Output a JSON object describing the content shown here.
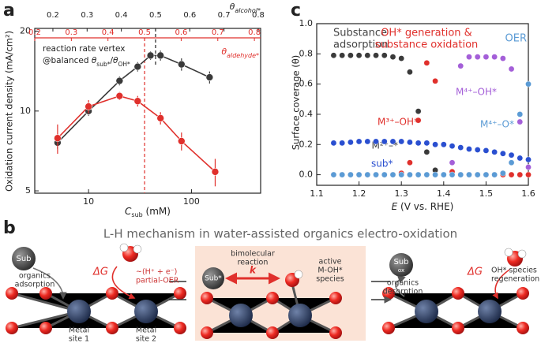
{
  "panels": [
    "a",
    "b",
    "c"
  ],
  "chart_data": [
    {
      "type": "scatter",
      "xlabel": [
        "C",
        "sub",
        " (mM)"
      ],
      "ylabel": "Oxidation current density (mA/cm²)",
      "log_x": true,
      "log_y": true,
      "xlim": [
        3,
        470
      ],
      "ylim": [
        4.9,
        20.5
      ],
      "xticks": [
        10,
        100
      ],
      "yticks": [
        5,
        10,
        20
      ],
      "top_axis": {
        "label": [
          "θ",
          "alcohol*"
        ],
        "lim": [
          0.147,
          0.807
        ],
        "ticks": [
          0.2,
          0.3,
          0.4,
          0.5,
          0.6,
          0.7,
          0.8
        ],
        "color": "#222",
        "vertex": 0.5
      },
      "top_axis_2": {
        "label": [
          "θ",
          "aldehyde*"
        ],
        "lim": [
          0.2,
          0.817
        ],
        "ticks": [
          0.2,
          0.3,
          0.4,
          0.5,
          0.6,
          0.7,
          0.8
        ],
        "color": "#e0302c",
        "vertex": 0.5
      },
      "annotation": [
        "reaction rate vertex",
        "@balanced ",
        "θ",
        "sub*",
        "/",
        "θ",
        "OH*"
      ],
      "series": [
        {
          "color": "#3a3a3a",
          "x": [
            5,
            10,
            20,
            30,
            40,
            50,
            80,
            150
          ],
          "values": [
            7.6,
            10,
            13,
            14.7,
            16.2,
            16.2,
            15,
            13.4
          ],
          "errors": [
            0.4,
            0.4,
            0.5,
            0.6,
            0.6,
            0.7,
            0.8,
            0.7
          ]
        },
        {
          "color": "#e0302c",
          "x": [
            5,
            10,
            20,
            30,
            50,
            80,
            170
          ],
          "values": [
            7.9,
            10.4,
            11.4,
            10.9,
            9.4,
            7.7,
            5.9
          ],
          "errors": [
            1.0,
            0.6,
            0.4,
            0.5,
            0.5,
            0.6,
            0.7
          ]
        }
      ]
    },
    {
      "type": "scatter",
      "xlabel": [
        "E",
        " (V vs. RHE)"
      ],
      "ylabel": "Surface coverage (θ)",
      "xlim": [
        1.1,
        1.6
      ],
      "ylim": [
        -0.07,
        1.0
      ],
      "xticks": [
        1.1,
        1.2,
        1.3,
        1.4,
        1.5,
        1.6
      ],
      "yticks": [
        {
          "value": 0,
          "label": "0.0"
        },
        0.2,
        0.4,
        0.6,
        0.8,
        {
          "value": 1,
          "label": "1.0"
        }
      ],
      "annotations": [
        [
          "Substance",
          "adsorption"
        ],
        [
          "OH* generation &",
          "substance oxidation"
        ],
        [
          "OER"
        ]
      ],
      "x": [
        1.14,
        1.16,
        1.18,
        1.2,
        1.22,
        1.24,
        1.26,
        1.28,
        1.3,
        1.32,
        1.34,
        1.36,
        1.38,
        1.4,
        1.42,
        1.44,
        1.46,
        1.48,
        1.5,
        1.52,
        1.54,
        1.56,
        1.58,
        1.6
      ],
      "series": [
        {
          "name": "M²⁺–*",
          "color": "#3a3a3a",
          "values": [
            0.79,
            0.79,
            0.79,
            0.79,
            0.79,
            0.79,
            0.79,
            0.78,
            0.77,
            0.68,
            0.42,
            0.15,
            0.03,
            0,
            null,
            null,
            null,
            null,
            null,
            null,
            null,
            null,
            null,
            null
          ]
        },
        {
          "name": "M³⁺–OH*",
          "color": "#e0302c",
          "values": [
            0,
            0,
            0,
            0,
            0,
            0,
            0,
            0,
            0.01,
            0.08,
            0.36,
            0.74,
            0.62,
            0.2,
            0.02,
            0,
            0,
            0,
            0,
            0,
            0,
            0,
            0,
            0
          ]
        },
        {
          "name": "M⁴⁺–OH*",
          "color": "#a45fd8",
          "values": [
            null,
            null,
            null,
            null,
            null,
            null,
            null,
            null,
            null,
            null,
            null,
            null,
            null,
            0,
            0.08,
            0.72,
            0.78,
            0.78,
            0.78,
            0.78,
            0.77,
            0.7,
            0.35,
            0.05
          ]
        },
        {
          "name": "M⁴⁺–O*",
          "color": "#5b9bd5",
          "values": [
            0,
            0,
            0,
            0,
            0,
            0,
            0,
            0,
            0,
            0,
            0,
            0,
            0,
            0,
            0,
            0,
            0,
            0,
            0,
            0,
            0.01,
            0.08,
            0.4,
            0.6
          ]
        },
        {
          "name": "sub*",
          "color": "#2a4fd0",
          "values": [
            0.21,
            0.21,
            0.215,
            0.22,
            0.22,
            0.22,
            0.22,
            0.22,
            0.22,
            0.215,
            0.21,
            0.21,
            0.2,
            0.2,
            0.19,
            0.18,
            0.17,
            0.165,
            0.16,
            0.15,
            0.14,
            0.13,
            0.11,
            0.1
          ]
        }
      ]
    }
  ],
  "diagram": {
    "title": "L-H mechanism in water-assisted organics electro-oxidation",
    "step1": {
      "sub": "Sub",
      "adsorption": [
        "organics",
        "adsorption"
      ],
      "dg": "ΔG",
      "oer": [
        "~(H⁺ + e⁻)",
        "partial-OER"
      ],
      "site1": [
        "Metal",
        "site 1"
      ],
      "site2": [
        "Metal",
        "site 2"
      ]
    },
    "step2": {
      "reaction": [
        "bimolecular",
        "reaction"
      ],
      "k": "k",
      "sub": "Sub*",
      "species": [
        "active",
        "M-OH*",
        "species"
      ]
    },
    "step3": {
      "sub": "Sub",
      "ox": "ox",
      "desorption": [
        "organics",
        "desorption"
      ],
      "dg": "ΔG",
      "regen": [
        "OH* species",
        "regeneration"
      ]
    }
  }
}
